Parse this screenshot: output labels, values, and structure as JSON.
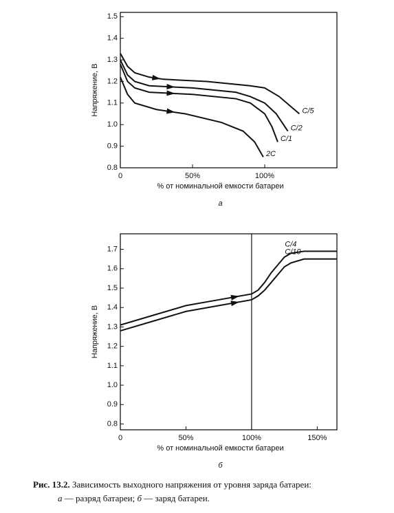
{
  "chart_data": [
    {
      "type": "line",
      "panel_label": "а",
      "x_label": "% от номинальной емкости батареи",
      "y_label": "Напряжение, В",
      "xlim": [
        0,
        150
      ],
      "xticks": [
        0,
        {
          "value": 50,
          "label": "50%"
        },
        {
          "value": 100,
          "label": "100%"
        }
      ],
      "ylim": [
        0.8,
        1.52
      ],
      "yticks": [
        0.8,
        0.9,
        {
          "value": 1,
          "label": "1.0"
        },
        1.1,
        1.2,
        1.3,
        1.4,
        1.5
      ],
      "series": [
        {
          "name": "C/5",
          "color": "#111111",
          "x": [
            0,
            5,
            10,
            20,
            30,
            60,
            90,
            100,
            110,
            117,
            124
          ],
          "values": [
            1.33,
            1.27,
            1.24,
            1.22,
            1.21,
            1.2,
            1.18,
            1.17,
            1.13,
            1.09,
            1.05
          ]
        },
        {
          "name": "C/2",
          "color": "#111111",
          "x": [
            0,
            5,
            10,
            20,
            50,
            80,
            90,
            100,
            108,
            116
          ],
          "values": [
            1.3,
            1.23,
            1.2,
            1.18,
            1.17,
            1.15,
            1.13,
            1.1,
            1.05,
            0.97
          ]
        },
        {
          "name": "C/1",
          "color": "#111111",
          "x": [
            0,
            5,
            10,
            20,
            50,
            80,
            90,
            100,
            105,
            109
          ],
          "values": [
            1.28,
            1.2,
            1.17,
            1.15,
            1.14,
            1.12,
            1.1,
            1.05,
            0.99,
            0.92
          ]
        },
        {
          "name": "2C",
          "color": "#111111",
          "x": [
            0,
            5,
            10,
            25,
            45,
            70,
            85,
            93,
            99
          ],
          "values": [
            1.22,
            1.14,
            1.1,
            1.07,
            1.05,
            1.01,
            0.97,
            0.92,
            0.85
          ]
        }
      ]
    },
    {
      "type": "line",
      "panel_label": "б",
      "x_label": "% от номинальной емкости батареи",
      "y_label": "Напряжение, В",
      "xlim": [
        0,
        165
      ],
      "xticks": [
        0,
        {
          "value": 50,
          "label": "50%"
        },
        {
          "value": 100,
          "label": "100%"
        },
        {
          "value": 150,
          "label": "150%"
        }
      ],
      "ylim": [
        0.77,
        1.78
      ],
      "yticks": [
        0.8,
        0.9,
        {
          "value": 1,
          "label": "1.0"
        },
        1.1,
        1.2,
        1.3,
        1.4,
        1.5,
        1.6,
        1.7
      ],
      "vlines": [
        100
      ],
      "series": [
        {
          "name": "C/4",
          "color": "#111111",
          "x": [
            0,
            25,
            50,
            75,
            100,
            105,
            110,
            115,
            120,
            125,
            130,
            140,
            165
          ],
          "values": [
            1.31,
            1.36,
            1.41,
            1.44,
            1.47,
            1.49,
            1.53,
            1.58,
            1.62,
            1.66,
            1.68,
            1.69,
            1.69
          ]
        },
        {
          "name": "C/10",
          "color": "#111111",
          "x": [
            0,
            25,
            50,
            75,
            100,
            105,
            110,
            115,
            120,
            125,
            130,
            140,
            165
          ],
          "values": [
            1.28,
            1.33,
            1.38,
            1.41,
            1.44,
            1.46,
            1.49,
            1.53,
            1.57,
            1.61,
            1.63,
            1.65,
            1.65
          ]
        }
      ]
    }
  ],
  "caption": {
    "label": "Рис. 13.2.",
    "text": "Зависимость выходного напряжения от уровня заряда батареи:",
    "line2": [
      {
        "mark": "а",
        "text": "— разряд батареи;"
      },
      {
        "mark": "б",
        "text": "— заряд батареи."
      }
    ]
  }
}
